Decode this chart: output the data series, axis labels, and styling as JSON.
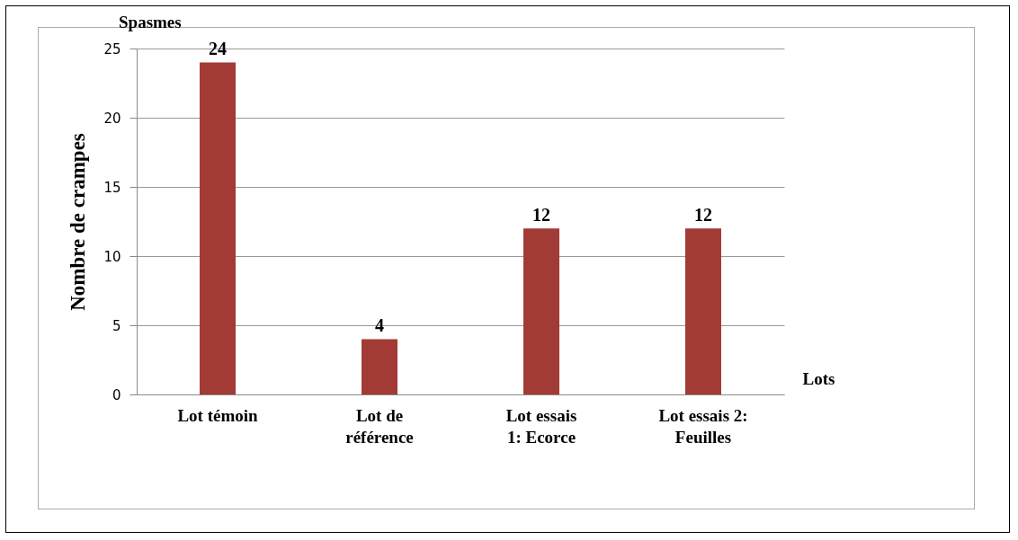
{
  "chart_data": {
    "type": "bar",
    "categories": [
      "Lot témoin",
      "Lot de référence",
      "Lot  essais 1: Ecorce",
      "Lot essais 2: Feuilles"
    ],
    "values": [
      24,
      4,
      12,
      12
    ],
    "color": "#a23b35",
    "xlabel": "Lots",
    "ylabel": "Nombre de crampes",
    "annotations": [
      "Spasmes"
    ],
    "ylim": [
      0,
      25
    ],
    "yticks": [
      0,
      5,
      10,
      15,
      20,
      25
    ],
    "grid": "y",
    "data_labels": true
  }
}
